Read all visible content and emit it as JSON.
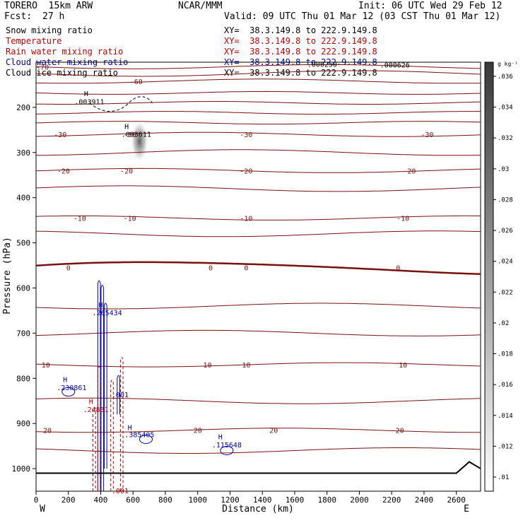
{
  "header": {
    "model": "TORERO  15km ARW",
    "center": "NCAR/MMM",
    "init": "Init: 06 UTC Wed 29 Feb 12",
    "fcst_label": "Fcst:",
    "fcst_value": "27 h",
    "valid": "Valid: 09 UTC Thu 01 Mar 12 (03 CST Thu 01 Mar 12)"
  },
  "fields": [
    {
      "name": "Snow mixing ratio",
      "color": "#000000",
      "xy": ""
    },
    {
      "name": "Temperature",
      "color": "#c00000",
      "xy": "XY=  38.3.149.8 to 222.9.149.8"
    },
    {
      "name": "Rain water mixing ratio",
      "color": "#c00000",
      "xy": "XY=  38.3.149.8 to 222.9.149.8"
    },
    {
      "name": "Cloud water mixing ratio",
      "color": "#0000c0",
      "xy": "XY=  38.3.149.8 to 222.9.149.8"
    },
    {
      "name": "Cloud ice mixing ratio",
      "color": "#000000",
      "xy": "XY=  38.3.149.8 to 222.9.149.8"
    }
  ],
  "snow_xy": "XY=  38.3.149.8 to 222.9.149.8",
  "chart_data": {
    "type": "line",
    "xlabel": "Distance (km)",
    "ylabel": "Pressure (hPa)",
    "xlim": [
      0,
      2750
    ],
    "ylim": [
      1050,
      100
    ],
    "x_ticks": [
      0,
      200,
      400,
      600,
      800,
      1000,
      1200,
      1400,
      1600,
      1800,
      2000,
      2200,
      2400,
      2600
    ],
    "y_ticks": [
      200,
      300,
      400,
      500,
      600,
      700,
      800,
      900,
      1000
    ],
    "x_end_labels": {
      "left": "W",
      "right": "E"
    },
    "colorbar": {
      "unit": "g kg⁻¹",
      "ticks": [
        ".01",
        ".012",
        ".014",
        ".016",
        ".018",
        ".02",
        ".022",
        ".024",
        ".026",
        ".028",
        ".03",
        ".032",
        ".034",
        ".036"
      ]
    },
    "temperature_isotherms": [
      {
        "label": "-70",
        "p": 110,
        "label_x": [
          40
        ]
      },
      {
        "label": "-60",
        "p": 142,
        "label_x": [
          620
        ]
      },
      {
        "label": "-30",
        "p": 260,
        "label_x": [
          150,
          580,
          1300,
          2420
        ]
      },
      {
        "label": "-20",
        "p": 340,
        "label_x": [
          170,
          560,
          1300,
          2310
        ]
      },
      {
        "label": "-10",
        "p": 445,
        "label_x": [
          270,
          580,
          1300,
          2270
        ]
      },
      {
        "label": "0",
        "p": 555,
        "label_x": [
          200,
          1080,
          1300,
          2240
        ]
      },
      {
        "label": "10",
        "p": 770,
        "label_x": [
          60,
          1060,
          1300,
          2270
        ]
      },
      {
        "label": "20",
        "p": 915,
        "label_x": [
          70,
          1000,
          1470,
          2250
        ]
      }
    ],
    "maxima_labels": [
      {
        "text": "H",
        "x": 310,
        "p": 175,
        "color": "#000000"
      },
      {
        "text": ".003911",
        "x": 330,
        "p": 193,
        "color": "#000000"
      },
      {
        "text": "H",
        "x": 560,
        "p": 248,
        "color": "#000000"
      },
      {
        "text": ".003611",
        "x": 620,
        "p": 265,
        "color": "#000000"
      },
      {
        "text": "H",
        "x": 400,
        "p": 643,
        "color": "#0000c0"
      },
      {
        "text": ".265434",
        "x": 440,
        "p": 660,
        "color": "#0000c0"
      },
      {
        "text": "H",
        "x": 180,
        "p": 808,
        "color": "#0000c0"
      },
      {
        "text": ".230861",
        "x": 220,
        "p": 826,
        "color": "#0000c0"
      },
      {
        "text": "H",
        "x": 340,
        "p": 857,
        "color": "#c00000"
      },
      {
        "text": ".24831",
        "x": 370,
        "p": 875,
        "color": "#c00000"
      },
      {
        "text": ".001",
        "x": 520,
        "p": 842,
        "color": "#0000c0"
      },
      {
        "text": "H",
        "x": 580,
        "p": 915,
        "color": "#0000c0"
      },
      {
        "text": ".385405",
        "x": 640,
        "p": 930,
        "color": "#0000c0"
      },
      {
        "text": "H",
        "x": 1140,
        "p": 935,
        "color": "#0000c0"
      },
      {
        "text": ".115648",
        "x": 1180,
        "p": 953,
        "color": "#0000c0"
      },
      {
        "text": ".001",
        "x": 520,
        "p": 1055,
        "color": "#c00000"
      },
      {
        "text": ".000250",
        "x": 1770,
        "p": 110,
        "color": "#000000"
      },
      {
        "text": ".000626",
        "x": 2220,
        "p": 112,
        "color": "#000000"
      }
    ],
    "terrain_surface_p": 1010
  }
}
